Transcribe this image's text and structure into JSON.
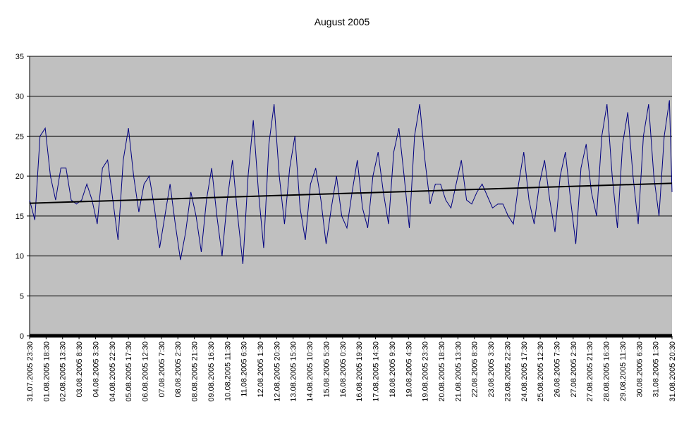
{
  "chart_data": {
    "type": "line",
    "title": "August 2005",
    "ylim": [
      0,
      35
    ],
    "yticks": [
      0,
      5,
      10,
      15,
      20,
      25,
      30,
      35
    ],
    "grid": true,
    "xlim": [
      0,
      741
    ],
    "xticks": [
      {
        "value": 0,
        "label": "31.07.2005 23:30"
      },
      {
        "value": 19,
        "label": "01.08.2005 18:30"
      },
      {
        "value": 38,
        "label": "02.08.2005 13:30"
      },
      {
        "value": 57,
        "label": "03.08.2005 8:30"
      },
      {
        "value": 76,
        "label": "04.08.2005 3:30"
      },
      {
        "value": 95,
        "label": "04.08.2005 22:30"
      },
      {
        "value": 114,
        "label": "05.08.2005 17:30"
      },
      {
        "value": 133,
        "label": "06.08.2005 12:30"
      },
      {
        "value": 152,
        "label": "07.08.2005 7:30"
      },
      {
        "value": 171,
        "label": "08.08.2005 2:30"
      },
      {
        "value": 190,
        "label": "08.08.2005 21:30"
      },
      {
        "value": 209,
        "label": "09.08.2005 16:30"
      },
      {
        "value": 228,
        "label": "10.08.2005 11:30"
      },
      {
        "value": 247,
        "label": "11.08.2005 6:30"
      },
      {
        "value": 266,
        "label": "12.08.2005 1:30"
      },
      {
        "value": 285,
        "label": "12.08.2005 20:30"
      },
      {
        "value": 304,
        "label": "13.08.2005 15:30"
      },
      {
        "value": 323,
        "label": "14.08.2005 10:30"
      },
      {
        "value": 342,
        "label": "15.08.2005 5:30"
      },
      {
        "value": 361,
        "label": "16.08.2005 0:30"
      },
      {
        "value": 380,
        "label": "16.08.2005 19:30"
      },
      {
        "value": 399,
        "label": "17.08.2005 14:30"
      },
      {
        "value": 418,
        "label": "18.08.2005 9:30"
      },
      {
        "value": 437,
        "label": "19.08.2005 4:30"
      },
      {
        "value": 456,
        "label": "19.08.2005 23:30"
      },
      {
        "value": 475,
        "label": "20.08.2005 18:30"
      },
      {
        "value": 494,
        "label": "21.08.2005 13:30"
      },
      {
        "value": 513,
        "label": "22.08.2005 8:30"
      },
      {
        "value": 532,
        "label": "23.08.2005 3:30"
      },
      {
        "value": 551,
        "label": "23.08.2005 22:30"
      },
      {
        "value": 570,
        "label": "24.08.2005 17:30"
      },
      {
        "value": 589,
        "label": "25.08.2005 12:30"
      },
      {
        "value": 608,
        "label": "26.08.2005 7:30"
      },
      {
        "value": 627,
        "label": "27.08.2005 2:30"
      },
      {
        "value": 646,
        "label": "27.08.2005 21:30"
      },
      {
        "value": 665,
        "label": "28.08.2005 16:30"
      },
      {
        "value": 684,
        "label": "29.08.2005 11:30"
      },
      {
        "value": 703,
        "label": "30.08.2005 6:30"
      },
      {
        "value": 722,
        "label": "31.08.2005 1:30"
      },
      {
        "value": 741,
        "label": "31.08.2005 20:30"
      }
    ],
    "series": [
      {
        "color": "#000080",
        "x": [
          0,
          6,
          12,
          18,
          24,
          30,
          36,
          42,
          48,
          54,
          60,
          66,
          72,
          78,
          84,
          90,
          96,
          102,
          108,
          114,
          120,
          126,
          132,
          138,
          144,
          150,
          156,
          162,
          168,
          174,
          180,
          186,
          192,
          198,
          204,
          210,
          216,
          222,
          228,
          234,
          240,
          246,
          252,
          258,
          264,
          270,
          276,
          282,
          288,
          294,
          300,
          306,
          312,
          318,
          324,
          330,
          336,
          342,
          348,
          354,
          360,
          366,
          372,
          378,
          384,
          390,
          396,
          402,
          408,
          414,
          420,
          426,
          432,
          438,
          444,
          450,
          456,
          462,
          468,
          474,
          480,
          486,
          492,
          498,
          504,
          510,
          516,
          522,
          528,
          534,
          540,
          546,
          552,
          558,
          564,
          570,
          576,
          582,
          588,
          594,
          600,
          606,
          612,
          618,
          624,
          630,
          636,
          642,
          648,
          654,
          660,
          666,
          672,
          678,
          684,
          690,
          696,
          702,
          708,
          714,
          720,
          726,
          732,
          738,
          741
        ],
        "values": [
          17,
          14.5,
          25,
          26,
          20,
          17,
          21,
          21,
          17,
          16.5,
          17,
          19,
          17,
          14,
          21,
          22,
          17,
          12,
          22,
          26,
          20,
          15.5,
          19,
          20,
          16,
          11,
          15,
          19,
          14,
          9.5,
          13,
          18,
          15,
          10.5,
          17,
          21,
          15,
          10,
          17,
          22,
          15,
          9,
          20,
          27,
          18,
          11,
          24,
          29,
          20,
          14,
          21,
          25,
          16,
          12,
          19,
          21,
          17,
          11.5,
          16,
          20,
          15,
          13.5,
          18,
          22,
          16,
          13.5,
          20,
          23,
          18,
          14,
          23,
          26,
          20,
          13.5,
          25,
          29,
          22,
          16.5,
          19,
          19,
          17,
          16,
          19,
          22,
          17,
          16.5,
          18,
          19,
          17.5,
          16,
          16.5,
          16.5,
          15,
          14,
          19,
          23,
          17,
          14,
          19,
          22,
          17,
          13,
          20,
          23,
          17,
          11.5,
          21,
          24,
          18,
          15,
          25,
          29,
          20,
          13.5,
          24,
          28,
          20,
          14,
          25,
          29,
          20,
          15,
          25,
          29.5,
          18
        ]
      },
      {
        "color": "#000000",
        "x": [
          0,
          741
        ],
        "values": [
          16.6,
          19.1
        ]
      }
    ]
  }
}
